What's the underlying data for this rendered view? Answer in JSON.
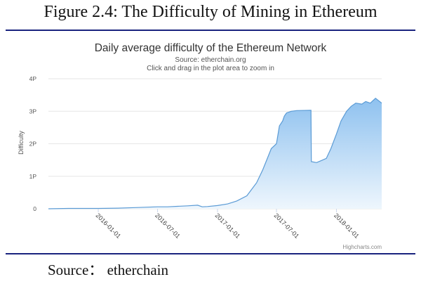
{
  "figure": {
    "title": "Figure 2.4: The Difficulty of Mining in Ethereum",
    "source": "Source： etherchain"
  },
  "chart_data": {
    "type": "area",
    "title": "Daily average difficulty of the Ethereum Network",
    "subtitle_source": "Source: etherchain.org",
    "subtitle_hint": "Click and drag in the plot area to zoom in",
    "ylabel": "Difficulty",
    "xlabel": "",
    "y_ticks": [
      "0",
      "1P",
      "2P",
      "3P",
      "4P"
    ],
    "ylim": [
      0,
      4
    ],
    "y_unit": "P",
    "x_ticks": [
      "2016-01-01",
      "2016-07-01",
      "2017-01-01",
      "2017-07-01",
      "2018-01-01"
    ],
    "xlim": [
      "2015-08-01",
      "2018-05-20"
    ],
    "credit": "Highcharts.com",
    "grid": true,
    "series": [
      {
        "points": [
          [
            "2015-08-01",
            0.0
          ],
          [
            "2015-10-01",
            0.01
          ],
          [
            "2016-01-01",
            0.01
          ],
          [
            "2016-03-01",
            0.02
          ],
          [
            "2016-05-01",
            0.04
          ],
          [
            "2016-07-01",
            0.06
          ],
          [
            "2016-08-01",
            0.06
          ],
          [
            "2016-10-01",
            0.09
          ],
          [
            "2016-11-01",
            0.11
          ],
          [
            "2016-11-15",
            0.06
          ],
          [
            "2016-12-01",
            0.07
          ],
          [
            "2017-01-01",
            0.1
          ],
          [
            "2017-02-01",
            0.15
          ],
          [
            "2017-03-01",
            0.24
          ],
          [
            "2017-04-01",
            0.4
          ],
          [
            "2017-05-01",
            0.8
          ],
          [
            "2017-05-20",
            1.2
          ],
          [
            "2017-06-01",
            1.5
          ],
          [
            "2017-06-15",
            1.85
          ],
          [
            "2017-07-01",
            2.0
          ],
          [
            "2017-07-10",
            2.55
          ],
          [
            "2017-07-20",
            2.7
          ],
          [
            "2017-07-25",
            2.85
          ],
          [
            "2017-08-01",
            2.95
          ],
          [
            "2017-08-10",
            2.98
          ],
          [
            "2017-08-15",
            3.0
          ],
          [
            "2017-09-01",
            3.02
          ],
          [
            "2017-10-15",
            3.03
          ],
          [
            "2017-10-16",
            1.45
          ],
          [
            "2017-11-01",
            1.42
          ],
          [
            "2017-11-15",
            1.48
          ],
          [
            "2017-12-01",
            1.55
          ],
          [
            "2017-12-15",
            1.85
          ],
          [
            "2018-01-01",
            2.3
          ],
          [
            "2018-01-15",
            2.7
          ],
          [
            "2018-02-01",
            3.0
          ],
          [
            "2018-02-15",
            3.15
          ],
          [
            "2018-03-01",
            3.25
          ],
          [
            "2018-03-20",
            3.22
          ],
          [
            "2018-04-01",
            3.3
          ],
          [
            "2018-04-15",
            3.25
          ],
          [
            "2018-05-01",
            3.4
          ],
          [
            "2018-05-20",
            3.25
          ]
        ]
      }
    ],
    "colors": {
      "line": "#5b9bd5",
      "fill_top": "#8ec1ef",
      "fill_bottom": "#eef6fd",
      "grid": "#e6e6e6"
    }
  }
}
